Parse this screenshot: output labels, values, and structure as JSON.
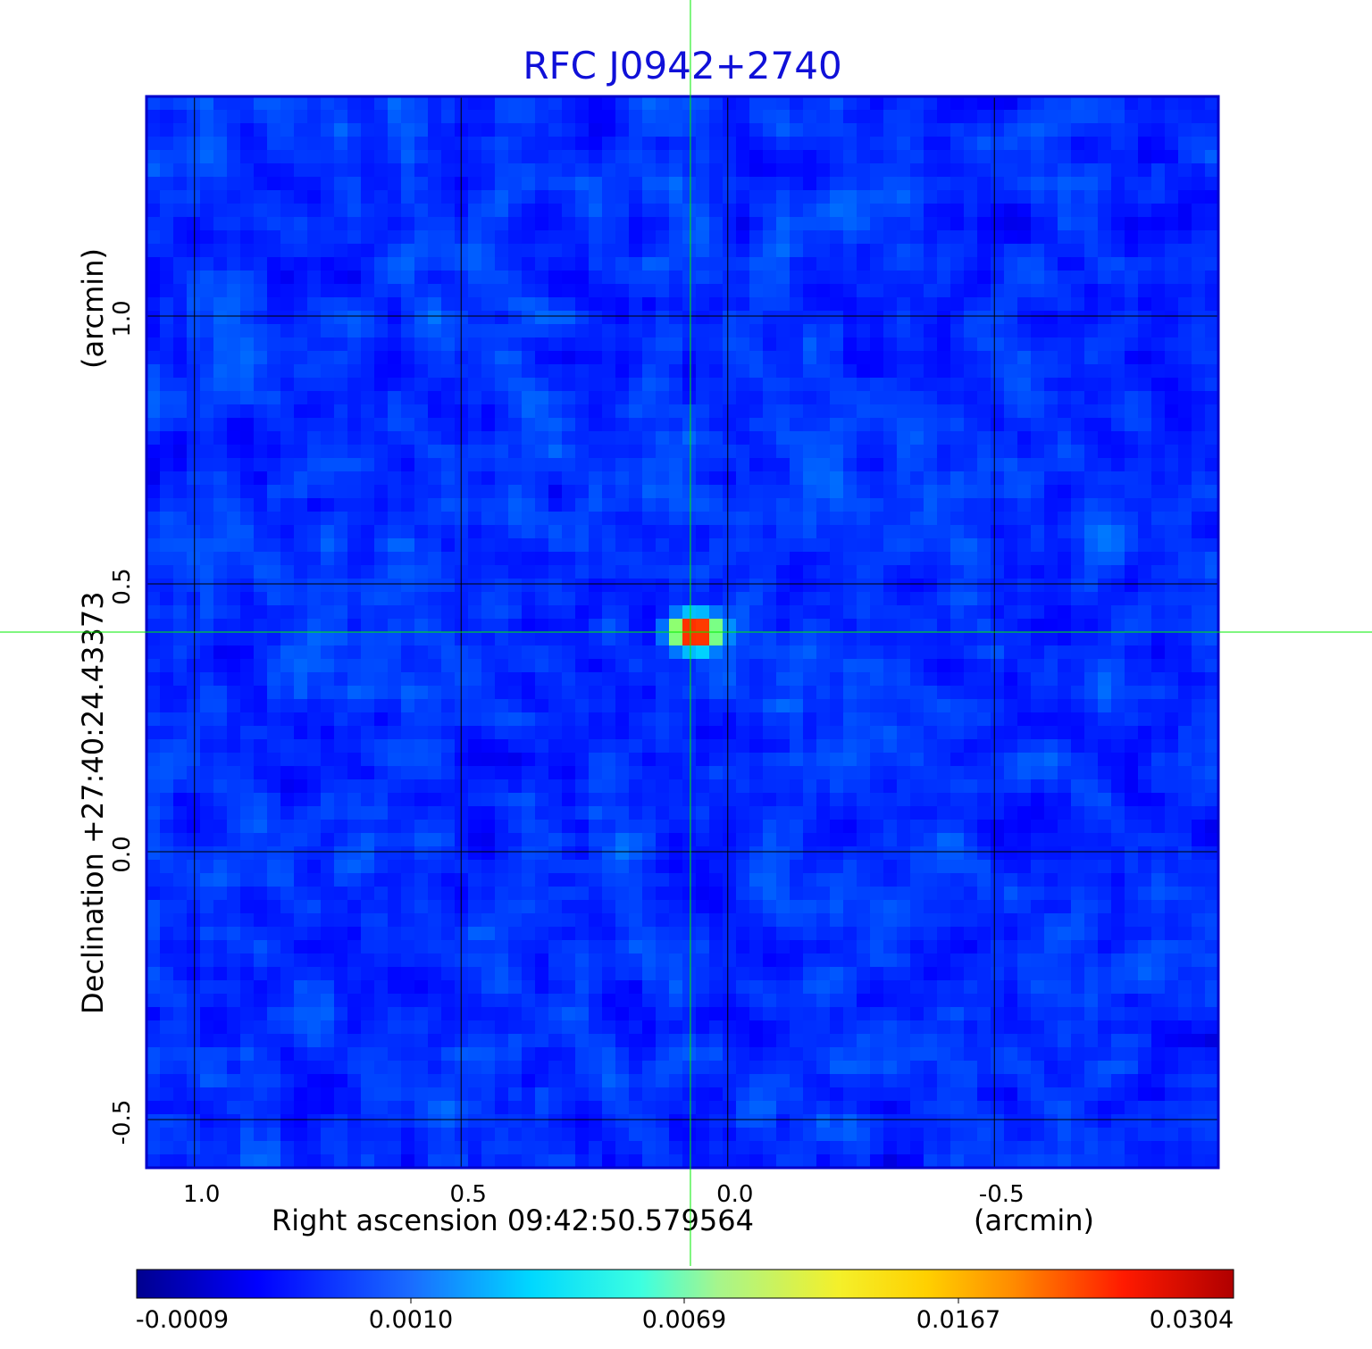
{
  "chart_data": {
    "type": "heatmap",
    "title": "RFC J0942+2740",
    "xlabel": "Right ascension  09:42:50.579564",
    "xunit": "(arcmin)",
    "ylabel": "Declination  +27:40:24.43373",
    "yunit": "(arcmin)",
    "xlim": [
      1.09,
      -0.92
    ],
    "ylim": [
      -0.59,
      1.41
    ],
    "x_ticks": [
      {
        "value": 1.0,
        "label": "1.0"
      },
      {
        "value": 0.5,
        "label": "0.5"
      },
      {
        "value": 0.0,
        "label": "0.0"
      },
      {
        "value": -0.5,
        "label": "-0.5"
      }
    ],
    "y_ticks": [
      {
        "value": 1.0,
        "label": "1.0"
      },
      {
        "value": 0.5,
        "label": "0.5"
      },
      {
        "value": 0.0,
        "label": "0.0"
      },
      {
        "value": -0.5,
        "label": "-0.5"
      }
    ],
    "grid": true,
    "crosshair": {
      "x": 0.07,
      "y": 0.41
    },
    "source_peak": {
      "x": 0.06,
      "y": 0.41,
      "value": 0.0304
    },
    "colorbar": {
      "colormap": "jet",
      "ticks": [
        "-0.0009",
        "0.0010",
        "0.0069",
        "0.0167",
        "0.0304"
      ]
    }
  },
  "colors": {
    "title": "#1010d8",
    "frame": "#0000cc",
    "grid": "#000000",
    "crosshair": "#00ee00"
  }
}
